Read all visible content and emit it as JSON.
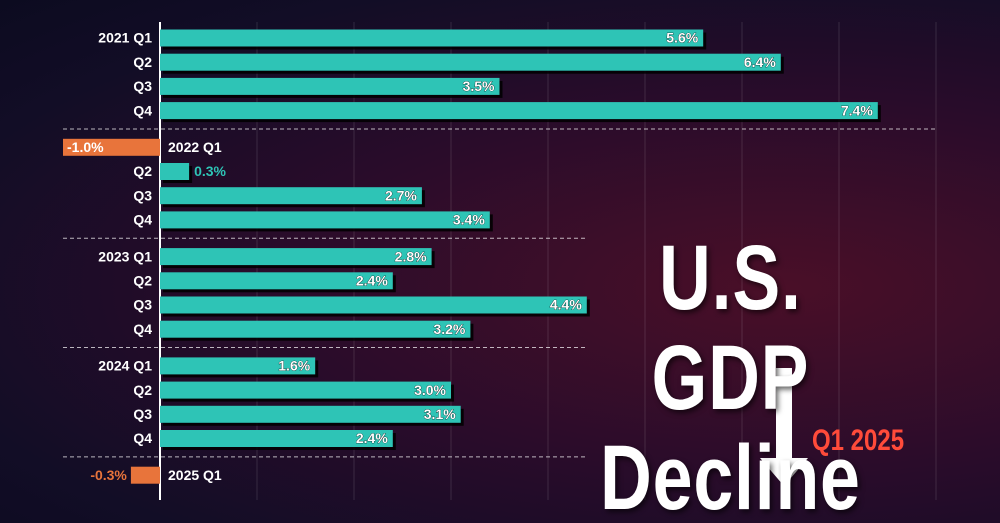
{
  "chart_data": {
    "type": "bar",
    "orientation": "horizontal",
    "title": "U.S. GDP Decline",
    "subtitle": "Q1 2025",
    "categories": [
      "2021 Q1",
      "Q2",
      "Q3",
      "Q4",
      "2022 Q1",
      "Q2",
      "Q3",
      "Q4",
      "2023 Q1",
      "Q2",
      "Q3",
      "Q4",
      "2024 Q1",
      "Q2",
      "Q3",
      "Q4",
      "2025 Q1"
    ],
    "values": [
      5.6,
      6.4,
      3.5,
      7.4,
      -1.0,
      0.3,
      2.7,
      3.4,
      2.8,
      2.4,
      4.4,
      3.2,
      1.6,
      3.0,
      3.1,
      2.4,
      -0.3
    ],
    "value_labels": [
      "5.6%",
      "6.4%",
      "3.5%",
      "7.4%",
      "-1.0%",
      "0.3%",
      "2.7%",
      "3.4%",
      "2.8%",
      "2.4%",
      "4.4%",
      "3.2%",
      "1.6%",
      "3.0%",
      "3.1%",
      "2.4%",
      "-0.3%"
    ],
    "color": "#2ec4b6",
    "negative_color": "#e8743b",
    "xlim": [
      -1,
      8
    ],
    "xticks": [
      1,
      2,
      3,
      4,
      5,
      6,
      7,
      8
    ],
    "grid": true
  }
}
